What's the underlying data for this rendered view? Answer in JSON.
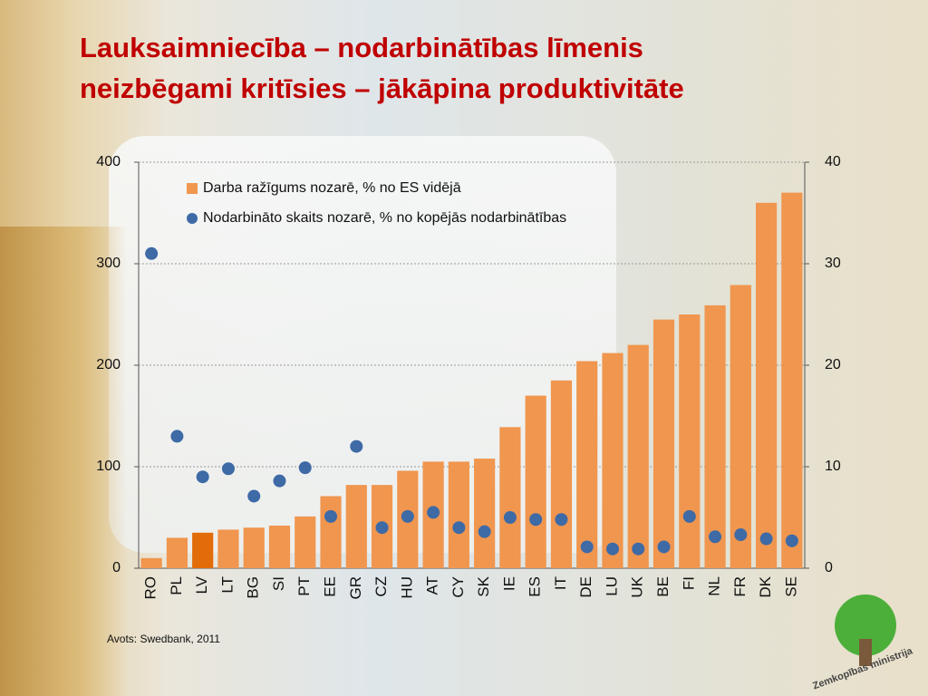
{
  "chart_data": {
    "type": "bar_dot",
    "title": [
      "Lauksaimniecība – nodarbinātības līmenis",
      "neizbēgami kritīsies – jākāpina produktivitāte"
    ],
    "categories": [
      "RO",
      "PL",
      "LV",
      "LT",
      "BG",
      "SI",
      "PT",
      "EE",
      "GR",
      "CZ",
      "HU",
      "AT",
      "CY",
      "SK",
      "IE",
      "ES",
      "IT",
      "DE",
      "LU",
      "UK",
      "BE",
      "FI",
      "NL",
      "FR",
      "DK",
      "SE"
    ],
    "series": [
      {
        "name": "Darba ražīgums nozarē, % no ES vidējā",
        "color": "#f0964f",
        "axis": "y",
        "highlight": {
          "category": "LV",
          "color": "#e36c0a"
        },
        "values": [
          10,
          30,
          35,
          38,
          40,
          42,
          51,
          71,
          82,
          82,
          96,
          105,
          105,
          108,
          139,
          170,
          185,
          204,
          212,
          220,
          245,
          250,
          259,
          279,
          360,
          370
        ]
      },
      {
        "name": "Nodarbināto skaits nozarē, % no kopējās nodarbinātības",
        "color": "#3e6aa6",
        "axis": "y2",
        "values": [
          31,
          13,
          9,
          9.8,
          7.1,
          8.6,
          9.9,
          5.1,
          12,
          4,
          5.1,
          5.5,
          4,
          3.6,
          5,
          4.8,
          4.8,
          2.1,
          1.9,
          1.9,
          2.1,
          5.1,
          3.1,
          3.3,
          2.9,
          2.7
        ]
      }
    ],
    "ylim": [
      0,
      400
    ],
    "yticks": [
      0,
      100,
      200,
      300,
      400
    ],
    "y2lim": [
      0,
      40
    ],
    "y2ticks": [
      0,
      10,
      20,
      30,
      40
    ],
    "grid": true,
    "legend": "top-left",
    "source": "Avots: Swedbank, 2011",
    "logo_text": "Zemkopības ministrija"
  }
}
